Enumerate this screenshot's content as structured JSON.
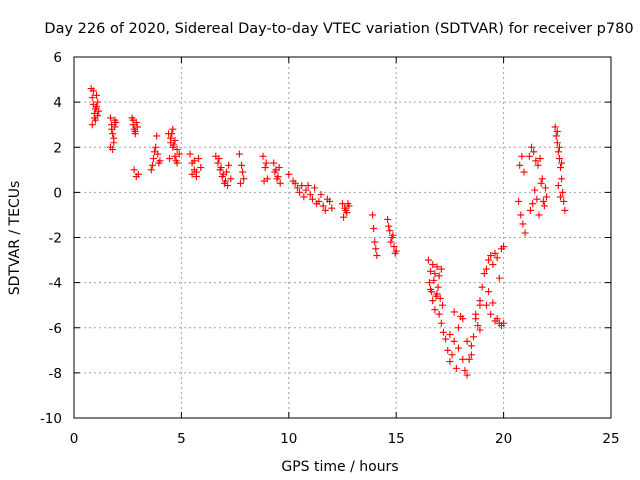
{
  "chart_data": {
    "type": "scatter",
    "title": "Day 226 of 2020, Sidereal Day-to-day VTEC variation (SDTVAR) for receiver p780",
    "xlabel": "GPS time / hours",
    "ylabel": "SDTVAR / TECUs",
    "xlim": [
      0,
      25
    ],
    "ylim": [
      -10,
      6
    ],
    "xticks": [
      0,
      5,
      10,
      15,
      20,
      25
    ],
    "yticks": [
      -10,
      -8,
      -6,
      -4,
      -2,
      0,
      2,
      4,
      6
    ],
    "grid": true,
    "marker": "+",
    "color": "#ff0000",
    "series": [
      {
        "name": "SDTVAR",
        "x": [
          0.8,
          0.85,
          0.9,
          0.95,
          1.0,
          1.05,
          1.1,
          1.15,
          0.85,
          0.95,
          1.05,
          0.9,
          1.0,
          1.1,
          1.7,
          1.75,
          1.8,
          1.85,
          1.9,
          1.95,
          1.8,
          1.7,
          1.85,
          1.75,
          1.9,
          2.7,
          2.75,
          2.8,
          2.85,
          2.9,
          2.95,
          3.0,
          2.8,
          2.9,
          2.75,
          2.85,
          3.6,
          3.7,
          3.8,
          3.9,
          4.0,
          3.65,
          3.75,
          3.85,
          3.95,
          4.4,
          4.5,
          4.6,
          4.7,
          4.8,
          4.9,
          4.5,
          4.6,
          4.7,
          4.8,
          4.45,
          4.55,
          4.65,
          4.75,
          5.4,
          5.5,
          5.6,
          5.7,
          5.8,
          5.9,
          5.5,
          5.6,
          5.7,
          6.6,
          6.7,
          6.8,
          6.9,
          7.0,
          7.1,
          7.2,
          7.3,
          6.75,
          6.85,
          6.95,
          7.05,
          7.15,
          7.7,
          7.8,
          7.9,
          7.75,
          7.85,
          8.8,
          8.9,
          9.0,
          8.85,
          8.95,
          9.3,
          9.4,
          9.5,
          9.6,
          9.35,
          9.45,
          9.55,
          10.0,
          10.2,
          10.4,
          10.6,
          10.8,
          11.0,
          11.2,
          11.4,
          11.6,
          11.8,
          12.0,
          10.3,
          10.5,
          10.7,
          10.9,
          11.1,
          11.3,
          11.5,
          11.7,
          11.9,
          12.5,
          12.6,
          12.7,
          12.8,
          12.55,
          12.65,
          12.75,
          13.9,
          14.0,
          14.1,
          13.95,
          14.05,
          14.6,
          14.7,
          14.8,
          14.9,
          15.0,
          14.65,
          14.75,
          14.85,
          14.95,
          16.5,
          16.6,
          16.7,
          16.8,
          16.9,
          17.0,
          17.1,
          16.55,
          16.65,
          16.75,
          16.85,
          16.95,
          17.05,
          17.15,
          16.6,
          16.7,
          16.8,
          16.9,
          17.0,
          17.1,
          17.2,
          17.3,
          17.4,
          17.5,
          17.6,
          17.7,
          17.8,
          17.9,
          18.0,
          18.1,
          18.2,
          18.3,
          18.4,
          18.5,
          18.6,
          18.7,
          18.8,
          18.9,
          17.5,
          17.7,
          17.9,
          18.1,
          18.3,
          18.5,
          18.7,
          18.9,
          18.9,
          19.0,
          19.1,
          19.2,
          19.3,
          19.4,
          19.5,
          19.6,
          19.7,
          19.8,
          19.9,
          20.0,
          19.2,
          19.4,
          19.6,
          19.8,
          19.3,
          19.5,
          19.7,
          19.9,
          20.0,
          20.7,
          20.8,
          20.9,
          21.0,
          20.75,
          20.85,
          20.95,
          21.2,
          21.3,
          21.4,
          21.5,
          21.6,
          21.7,
          21.8,
          21.9,
          22.0,
          21.25,
          21.35,
          21.45,
          21.55,
          21.65,
          21.75,
          21.85,
          21.95,
          22.4,
          22.45,
          22.5,
          22.55,
          22.6,
          22.65,
          22.7,
          22.75,
          22.8,
          22.85,
          22.5,
          22.6,
          22.7,
          22.55,
          22.65
        ],
        "y": [
          4.6,
          4.2,
          3.9,
          3.5,
          3.2,
          3.8,
          4.0,
          3.6,
          3.0,
          3.3,
          4.3,
          4.5,
          3.7,
          3.4,
          3.3,
          3.0,
          2.6,
          2.2,
          2.9,
          3.1,
          1.9,
          2.0,
          2.4,
          2.8,
          3.2,
          3.3,
          3.0,
          2.8,
          2.6,
          3.1,
          2.9,
          0.8,
          1.0,
          0.7,
          3.2,
          2.7,
          1.0,
          1.5,
          2.0,
          1.7,
          1.4,
          1.2,
          1.8,
          2.5,
          1.3,
          2.6,
          2.4,
          2.0,
          1.6,
          1.3,
          1.7,
          2.2,
          2.8,
          2.3,
          1.9,
          1.5,
          2.6,
          2.1,
          1.4,
          1.7,
          1.3,
          1.0,
          0.7,
          1.5,
          1.1,
          0.8,
          1.4,
          0.9,
          1.6,
          1.3,
          1.0,
          0.7,
          0.4,
          0.9,
          1.2,
          0.6,
          1.5,
          1.1,
          0.8,
          0.5,
          0.3,
          1.7,
          1.2,
          0.6,
          0.4,
          0.9,
          1.6,
          1.1,
          0.6,
          0.5,
          1.3,
          1.3,
          1.0,
          0.7,
          0.4,
          0.9,
          0.6,
          1.1,
          0.8,
          0.5,
          0.2,
          0.3,
          0.1,
          -0.1,
          0.2,
          -0.4,
          -0.6,
          -0.3,
          -0.7,
          0.4,
          0.0,
          -0.2,
          0.3,
          -0.3,
          -0.5,
          -0.1,
          -0.8,
          -0.4,
          -0.5,
          -0.7,
          -0.9,
          -0.6,
          -1.1,
          -0.8,
          -0.5,
          -1.0,
          -2.2,
          -2.8,
          -1.6,
          -2.5,
          -1.2,
          -1.7,
          -2.0,
          -2.4,
          -2.6,
          -1.5,
          -2.2,
          -1.9,
          -2.7,
          -3.0,
          -3.5,
          -3.2,
          -3.6,
          -3.3,
          -3.7,
          -3.4,
          -4.0,
          -4.4,
          -3.9,
          -4.6,
          -4.2,
          -4.7,
          -5.0,
          -4.3,
          -4.8,
          -5.2,
          -4.5,
          -5.4,
          -5.8,
          -6.2,
          -6.5,
          -7.0,
          -7.5,
          -7.2,
          -6.6,
          -7.8,
          -6.0,
          -5.5,
          -5.6,
          -7.9,
          -8.1,
          -7.4,
          -6.8,
          -6.4,
          -5.4,
          -5.9,
          -5.0,
          -6.3,
          -5.3,
          -6.9,
          -7.4,
          -6.6,
          -7.2,
          -5.6,
          -6.1,
          -4.8,
          -4.2,
          -3.6,
          -3.4,
          -3.0,
          -2.8,
          -3.2,
          -2.7,
          -2.9,
          -3.8,
          -2.5,
          -2.4,
          -5.0,
          -5.4,
          -5.7,
          -5.8,
          -4.4,
          -4.9,
          -5.6,
          -5.9,
          -5.8,
          -0.4,
          -1.0,
          -1.4,
          -1.8,
          1.2,
          1.6,
          0.9,
          1.6,
          2.0,
          1.8,
          1.4,
          1.2,
          1.5,
          0.6,
          -0.6,
          -0.2,
          -0.8,
          -0.5,
          0.1,
          -0.3,
          -1.0,
          0.4,
          -0.4,
          0.2,
          2.9,
          2.5,
          2.2,
          1.8,
          1.5,
          1.1,
          0.6,
          0.0,
          -0.4,
          -0.8,
          2.7,
          2.0,
          1.3,
          0.3,
          -0.2
        ]
      }
    ]
  }
}
